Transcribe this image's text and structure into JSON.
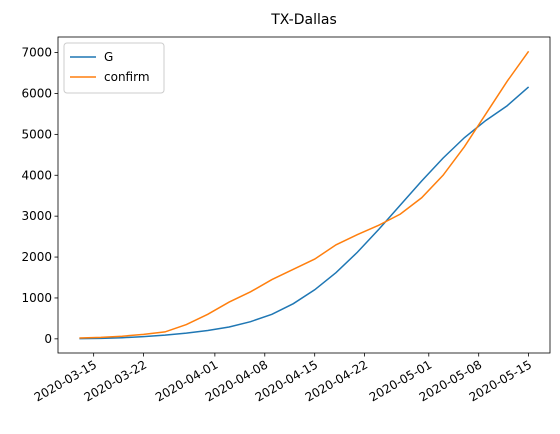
{
  "chart_data": {
    "type": "line",
    "title": "TX-Dallas",
    "x": [
      "2020-03-13",
      "2020-03-16",
      "2020-03-19",
      "2020-03-22",
      "2020-03-25",
      "2020-03-28",
      "2020-03-31",
      "2020-04-03",
      "2020-04-06",
      "2020-04-09",
      "2020-04-12",
      "2020-04-15",
      "2020-04-18",
      "2020-04-21",
      "2020-04-24",
      "2020-04-27",
      "2020-04-30",
      "2020-05-03",
      "2020-05-06",
      "2020-05-09",
      "2020-05-12",
      "2020-05-15"
    ],
    "series": [
      {
        "name": "G",
        "color": "#1f77b4",
        "values": [
          5,
          12,
          28,
          55,
          90,
          140,
          205,
          290,
          420,
          600,
          860,
          1200,
          1620,
          2120,
          2680,
          3270,
          3860,
          4420,
          4920,
          5340,
          5700,
          6160
        ]
      },
      {
        "name": "confirm",
        "color": "#ff7f0e",
        "values": [
          20,
          35,
          65,
          110,
          170,
          350,
          600,
          900,
          1150,
          1450,
          1700,
          1950,
          2300,
          2550,
          2780,
          3050,
          3450,
          4000,
          4700,
          5500,
          6300,
          7030
        ]
      }
    ],
    "xlim": [
      "2020-03-10",
      "2020-05-18"
    ],
    "xticks": [
      "2020-03-15",
      "2020-03-22",
      "2020-04-01",
      "2020-04-08",
      "2020-04-15",
      "2020-04-22",
      "2020-05-01",
      "2020-05-08",
      "2020-05-15"
    ],
    "ylim": [
      -346,
      7381
    ],
    "yticks": [
      0,
      1000,
      2000,
      3000,
      4000,
      5000,
      6000,
      7000
    ],
    "legend": "upper left"
  }
}
